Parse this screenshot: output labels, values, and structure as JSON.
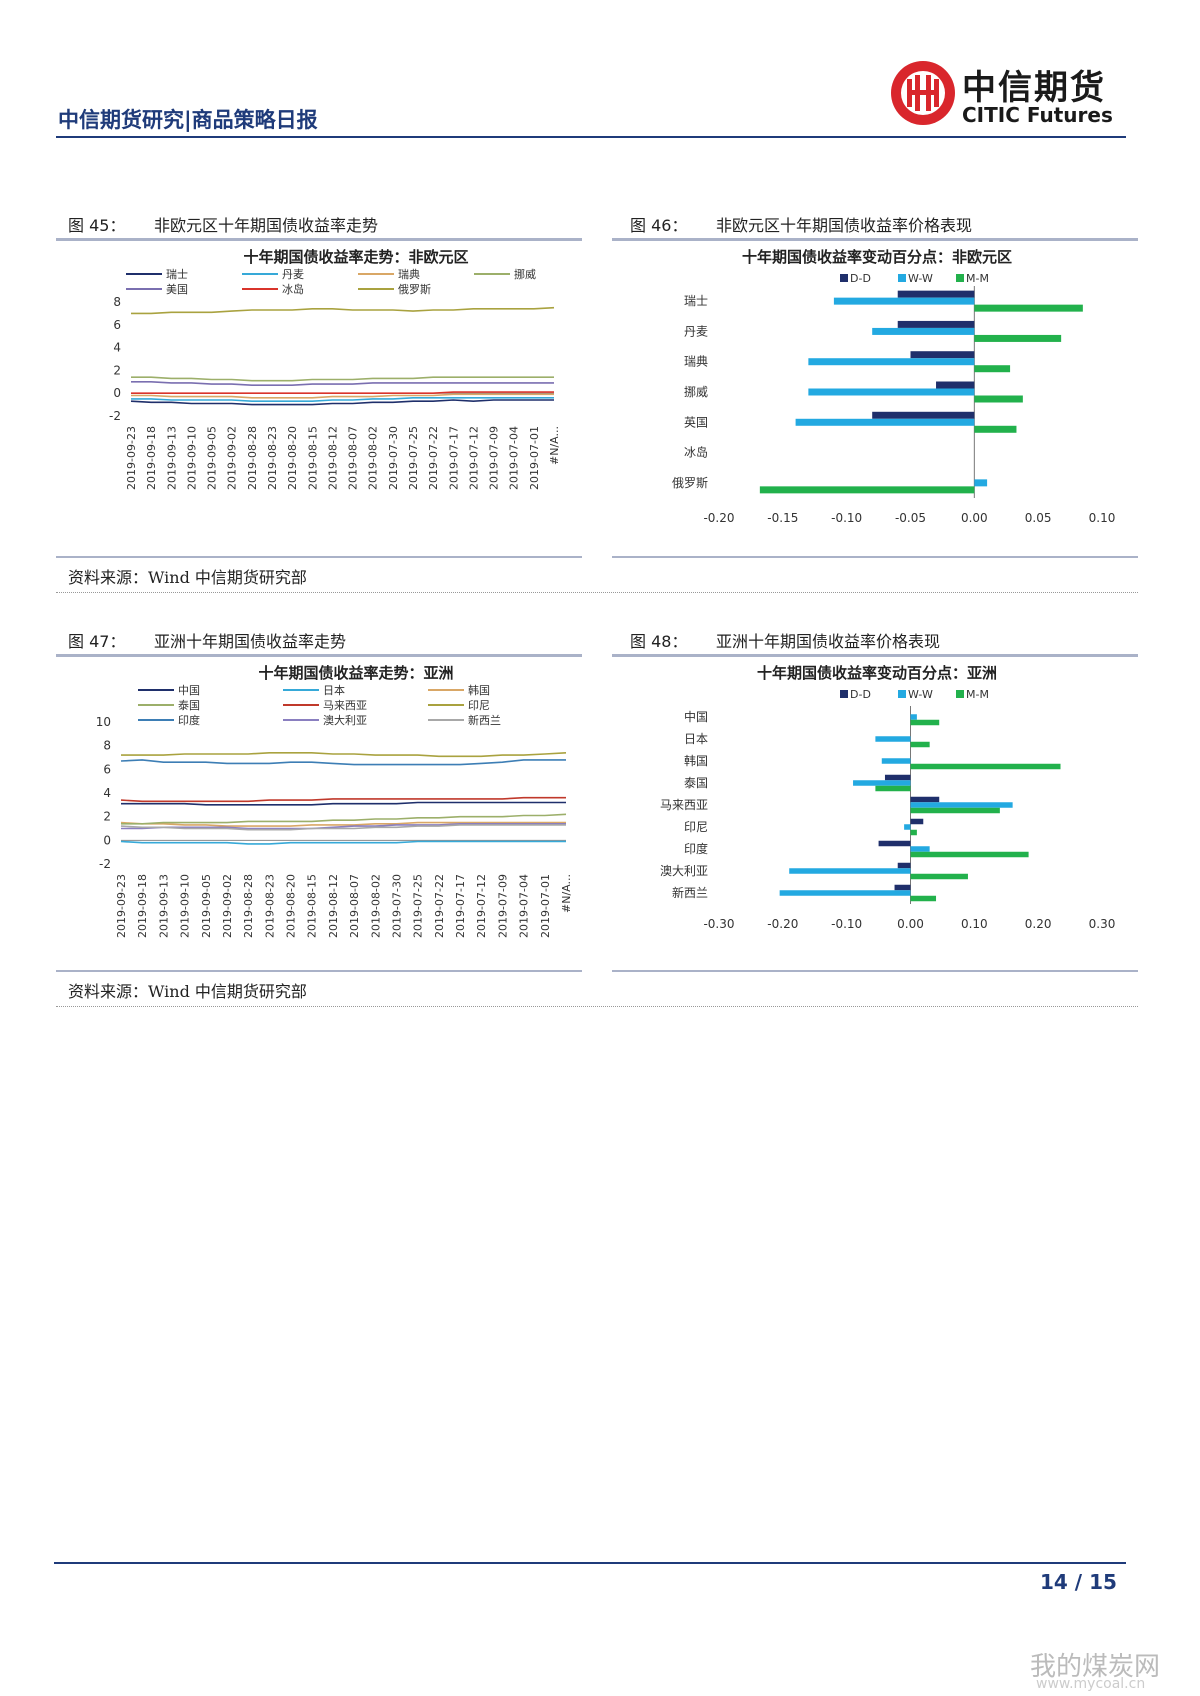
{
  "header": {
    "title": "中信期货研究|商品策略日报",
    "logo_cn": "中信期货",
    "logo_en": "CITIC Futures"
  },
  "figures": [
    {
      "num": "图 45：",
      "title": "非欧元区十年期国债收益率走势"
    },
    {
      "num": "图 46：",
      "title": "非欧元区十年期国债收益率价格表现"
    },
    {
      "num": "图 47：",
      "title": "亚洲十年期国债收益率走势"
    },
    {
      "num": "图 48：",
      "title": "亚洲十年期国债收益率价格表现"
    }
  ],
  "source_text": "资料来源：Wind 中信期货研究部",
  "page": {
    "number": "14 / 15"
  },
  "watermark": {
    "text": "我的煤炭网",
    "url": "www.mycoal.cn"
  },
  "chart_data": [
    {
      "type": "line",
      "title": "十年期国债收益率走势：非欧元区",
      "x_labels": [
        "2019-09-23",
        "2019-09-18",
        "2019-09-13",
        "2019-09-10",
        "2019-09-05",
        "2019-09-02",
        "2019-08-28",
        "2019-08-23",
        "2019-08-20",
        "2019-08-15",
        "2019-08-12",
        "2019-08-07",
        "2019-08-02",
        "2019-07-30",
        "2019-07-25",
        "2019-07-22",
        "2019-07-17",
        "2019-07-12",
        "2019-07-09",
        "2019-07-04",
        "2019-07-01",
        "#N/A..."
      ],
      "y_ticks": [
        8,
        6,
        4,
        2,
        0,
        -2
      ],
      "ylim": [
        -2,
        8
      ],
      "series": [
        {
          "name": "瑞士",
          "color": "#1f2f6b",
          "values": [
            -0.7,
            -0.8,
            -0.8,
            -0.9,
            -0.9,
            -0.9,
            -1.0,
            -1.0,
            -1.0,
            -1.0,
            -0.9,
            -0.9,
            -0.8,
            -0.8,
            -0.7,
            -0.7,
            -0.6,
            -0.7,
            -0.6,
            -0.6,
            -0.6,
            -0.6
          ]
        },
        {
          "name": "丹麦",
          "color": "#36a9d8",
          "values": [
            -0.5,
            -0.5,
            -0.6,
            -0.6,
            -0.6,
            -0.6,
            -0.7,
            -0.7,
            -0.7,
            -0.7,
            -0.6,
            -0.6,
            -0.5,
            -0.5,
            -0.4,
            -0.4,
            -0.4,
            -0.4,
            -0.4,
            -0.4,
            -0.4,
            -0.4
          ]
        },
        {
          "name": "瑞典",
          "color": "#d9a766",
          "values": [
            -0.2,
            -0.2,
            -0.3,
            -0.3,
            -0.3,
            -0.3,
            -0.4,
            -0.4,
            -0.4,
            -0.4,
            -0.3,
            -0.3,
            -0.3,
            -0.2,
            -0.2,
            -0.2,
            -0.1,
            -0.1,
            -0.1,
            -0.1,
            -0.1,
            -0.1
          ]
        },
        {
          "name": "挪威",
          "color": "#9caf6a",
          "values": [
            1.4,
            1.4,
            1.3,
            1.3,
            1.2,
            1.2,
            1.1,
            1.1,
            1.1,
            1.2,
            1.2,
            1.2,
            1.3,
            1.3,
            1.3,
            1.4,
            1.4,
            1.4,
            1.4,
            1.4,
            1.4,
            1.4
          ]
        },
        {
          "name": "美国",
          "color": "#7a6fb0",
          "values": [
            1.0,
            1.0,
            0.9,
            0.9,
            0.8,
            0.8,
            0.7,
            0.7,
            0.7,
            0.8,
            0.8,
            0.8,
            0.9,
            0.9,
            0.9,
            0.9,
            0.9,
            0.9,
            0.9,
            0.9,
            0.9,
            0.9
          ]
        },
        {
          "name": "冰岛",
          "color": "#d9342b",
          "values": [
            0.0,
            0.0,
            0.0,
            0.0,
            0.0,
            0.0,
            0.0,
            0.0,
            0.0,
            0.0,
            0.0,
            0.0,
            0.0,
            0.0,
            0.0,
            0.0,
            0.1,
            0.1,
            0.1,
            0.1,
            0.1,
            0.1
          ]
        },
        {
          "name": "俄罗斯",
          "color": "#a9a23f",
          "values": [
            7.0,
            7.0,
            7.1,
            7.1,
            7.1,
            7.2,
            7.3,
            7.3,
            7.3,
            7.4,
            7.4,
            7.3,
            7.3,
            7.3,
            7.2,
            7.3,
            7.3,
            7.4,
            7.4,
            7.4,
            7.4,
            7.5
          ]
        }
      ]
    },
    {
      "type": "bar",
      "orientation": "horizontal",
      "title": "十年期国债收益率变动百分点：非欧元区",
      "categories": [
        "瑞士",
        "丹麦",
        "瑞典",
        "挪威",
        "英国",
        "冰岛",
        "俄罗斯"
      ],
      "series": [
        {
          "name": "D-D",
          "color": "#1f2f6b",
          "values": [
            -0.06,
            -0.06,
            -0.05,
            -0.03,
            -0.08,
            0.0,
            0.0
          ]
        },
        {
          "name": "W-W",
          "color": "#23a9e1",
          "values": [
            -0.11,
            -0.08,
            -0.13,
            -0.13,
            -0.14,
            0.0,
            0.01
          ]
        },
        {
          "name": "M-M",
          "color": "#22b14c",
          "values": [
            0.085,
            0.068,
            0.028,
            0.038,
            0.033,
            0.0,
            -0.168
          ]
        }
      ],
      "x_ticks": [
        "-0.20",
        "-0.15",
        "-0.10",
        "-0.05",
        "0.00",
        "0.05",
        "0.10"
      ],
      "xlim": [
        -0.2,
        0.1
      ]
    },
    {
      "type": "line",
      "title": "十年期国债收益率走势：亚洲",
      "x_labels": [
        "2019-09-23",
        "2019-09-18",
        "2019-09-13",
        "2019-09-10",
        "2019-09-05",
        "2019-09-02",
        "2019-08-28",
        "2019-08-23",
        "2019-08-20",
        "2019-08-15",
        "2019-08-12",
        "2019-08-07",
        "2019-08-02",
        "2019-07-30",
        "2019-07-25",
        "2019-07-22",
        "2019-07-17",
        "2019-07-12",
        "2019-07-09",
        "2019-07-04",
        "2019-07-01",
        "#N/A..."
      ],
      "y_ticks": [
        10,
        8,
        6,
        4,
        2,
        0,
        -2
      ],
      "ylim": [
        -2,
        10
      ],
      "series": [
        {
          "name": "中国",
          "color": "#1f2f6b",
          "values": [
            3.1,
            3.1,
            3.1,
            3.1,
            3.0,
            3.0,
            3.0,
            3.0,
            3.0,
            3.0,
            3.1,
            3.1,
            3.1,
            3.1,
            3.2,
            3.2,
            3.2,
            3.2,
            3.2,
            3.2,
            3.2,
            3.2
          ]
        },
        {
          "name": "日本",
          "color": "#36a9d8",
          "values": [
            -0.1,
            -0.2,
            -0.2,
            -0.2,
            -0.2,
            -0.2,
            -0.3,
            -0.3,
            -0.2,
            -0.2,
            -0.2,
            -0.2,
            -0.2,
            -0.2,
            -0.1,
            -0.1,
            -0.1,
            -0.1,
            -0.1,
            -0.1,
            -0.1,
            -0.1
          ]
        },
        {
          "name": "韩国",
          "color": "#d9a766",
          "values": [
            1.5,
            1.4,
            1.4,
            1.3,
            1.3,
            1.2,
            1.2,
            1.2,
            1.2,
            1.3,
            1.3,
            1.3,
            1.4,
            1.4,
            1.5,
            1.5,
            1.5,
            1.5,
            1.5,
            1.5,
            1.5,
            1.5
          ]
        },
        {
          "name": "泰国",
          "color": "#9caf6a",
          "values": [
            1.4,
            1.4,
            1.5,
            1.5,
            1.5,
            1.5,
            1.6,
            1.6,
            1.6,
            1.6,
            1.7,
            1.7,
            1.8,
            1.8,
            1.9,
            1.9,
            2.0,
            2.0,
            2.0,
            2.1,
            2.1,
            2.2
          ]
        },
        {
          "name": "马来西亚",
          "color": "#c0392b",
          "values": [
            3.4,
            3.3,
            3.3,
            3.3,
            3.3,
            3.3,
            3.3,
            3.4,
            3.4,
            3.4,
            3.5,
            3.5,
            3.5,
            3.5,
            3.5,
            3.5,
            3.5,
            3.5,
            3.5,
            3.6,
            3.6,
            3.6
          ]
        },
        {
          "name": "印尼",
          "color": "#a9a23f",
          "values": [
            7.2,
            7.2,
            7.2,
            7.3,
            7.3,
            7.3,
            7.3,
            7.4,
            7.4,
            7.4,
            7.3,
            7.3,
            7.2,
            7.2,
            7.2,
            7.1,
            7.1,
            7.1,
            7.2,
            7.2,
            7.3,
            7.4
          ]
        },
        {
          "name": "印度",
          "color": "#3d7eb5",
          "values": [
            6.7,
            6.8,
            6.6,
            6.6,
            6.6,
            6.5,
            6.5,
            6.5,
            6.6,
            6.6,
            6.5,
            6.4,
            6.4,
            6.4,
            6.4,
            6.4,
            6.4,
            6.5,
            6.6,
            6.8,
            6.8,
            6.8
          ]
        },
        {
          "name": "澳大利亚",
          "color": "#8a7fc0",
          "values": [
            1.0,
            1.0,
            1.1,
            1.1,
            1.1,
            1.1,
            1.0,
            1.0,
            1.0,
            1.0,
            1.1,
            1.2,
            1.2,
            1.3,
            1.3,
            1.3,
            1.4,
            1.4,
            1.4,
            1.4,
            1.4,
            1.4
          ]
        },
        {
          "name": "新西兰",
          "color": "#a8a8a8",
          "values": [
            1.2,
            1.1,
            1.1,
            1.0,
            1.0,
            1.0,
            0.9,
            0.9,
            0.9,
            1.0,
            1.0,
            1.0,
            1.1,
            1.1,
            1.2,
            1.2,
            1.3,
            1.3,
            1.3,
            1.3,
            1.3,
            1.3
          ]
        }
      ]
    },
    {
      "type": "bar",
      "orientation": "horizontal",
      "title": "十年期国债收益率变动百分点：亚洲",
      "categories": [
        "中国",
        "日本",
        "韩国",
        "泰国",
        "马来西亚",
        "印尼",
        "印度",
        "澳大利亚",
        "新西兰"
      ],
      "series": [
        {
          "name": "D-D",
          "color": "#1f2f6b",
          "values": [
            0.0,
            0.0,
            0.0,
            -0.04,
            0.045,
            0.02,
            -0.05,
            -0.02,
            -0.025
          ]
        },
        {
          "name": "W-W",
          "color": "#23a9e1",
          "values": [
            0.01,
            -0.055,
            -0.045,
            -0.09,
            0.16,
            -0.01,
            0.03,
            -0.19,
            -0.205
          ]
        },
        {
          "name": "M-M",
          "color": "#22b14c",
          "values": [
            0.045,
            0.03,
            0.235,
            -0.055,
            0.14,
            0.01,
            0.185,
            0.09,
            0.04
          ]
        }
      ],
      "x_ticks": [
        "-0.30",
        "-0.20",
        "-0.10",
        "0.00",
        "0.10",
        "0.20",
        "0.30"
      ],
      "xlim": [
        -0.3,
        0.3
      ]
    }
  ]
}
